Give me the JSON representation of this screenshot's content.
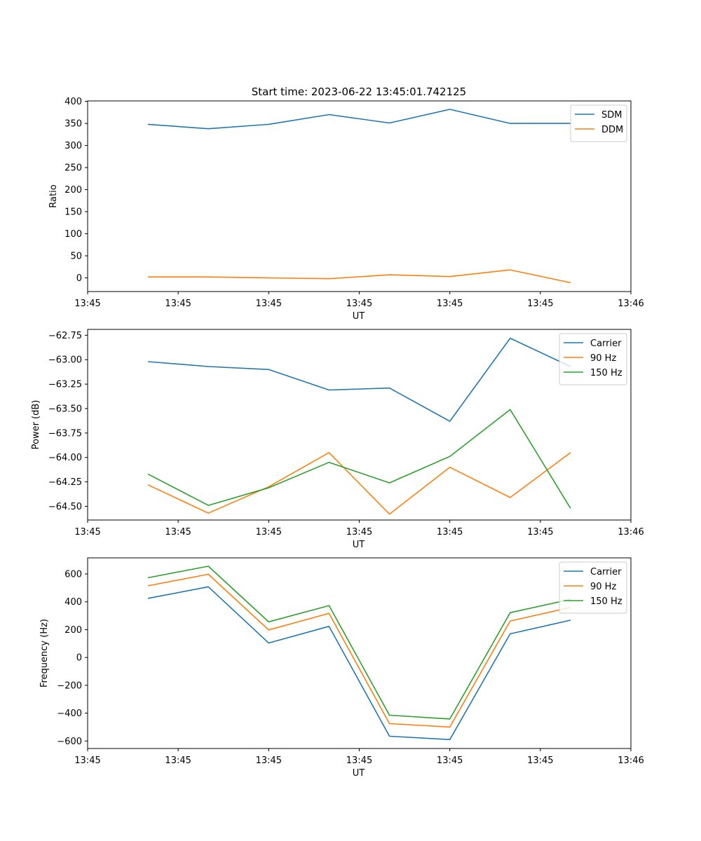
{
  "title": "Start time: 2023-06-22 13:45:01.742125",
  "chart_data": [
    {
      "type": "line",
      "x": [
        1,
        2,
        3,
        4,
        5,
        6,
        7,
        8
      ],
      "xlim": [
        0,
        9
      ],
      "xticks": [
        0,
        1.5,
        3,
        4.5,
        6,
        7.5,
        9
      ],
      "xtick_labels": [
        "13:45",
        "13:45",
        "13:45",
        "13:45",
        "13:45",
        "13:45",
        "13:46"
      ],
      "xlabel": "UT",
      "ylabel": "Ratio",
      "ylim": [
        -31,
        401
      ],
      "yticks": [
        0,
        50,
        100,
        150,
        200,
        250,
        300,
        350,
        400
      ],
      "ytick_labels": [
        "0",
        "50",
        "100",
        "150",
        "200",
        "250",
        "300",
        "350",
        "400"
      ],
      "legend_position": "top-right",
      "series": [
        {
          "name": "SDM",
          "color": "#1f77b4",
          "values": [
            348,
            338,
            348,
            370,
            351,
            382,
            350,
            350
          ]
        },
        {
          "name": "DDM",
          "color": "#ff7f0e",
          "values": [
            2,
            2,
            0,
            -2,
            7,
            3,
            18,
            -11
          ]
        }
      ]
    },
    {
      "type": "line",
      "x": [
        1,
        2,
        3,
        4,
        5,
        6,
        7,
        8
      ],
      "xlim": [
        0,
        9
      ],
      "xticks": [
        0,
        1.5,
        3,
        4.5,
        6,
        7.5,
        9
      ],
      "xtick_labels": [
        "13:45",
        "13:45",
        "13:45",
        "13:45",
        "13:45",
        "13:45",
        "13:46"
      ],
      "xlabel": "UT",
      "ylabel": "Power (dB)",
      "ylim": [
        -64.64,
        -62.69
      ],
      "yticks": [
        -64.5,
        -64.25,
        -64.0,
        -63.75,
        -63.5,
        -63.25,
        -63.0,
        -62.75
      ],
      "ytick_labels": [
        "−64.50",
        "−64.25",
        "−64.00",
        "−63.75",
        "−63.50",
        "−63.25",
        "−63.00",
        "−62.75"
      ],
      "legend_position": "top-right",
      "series": [
        {
          "name": "Carrier",
          "color": "#1f77b4",
          "values": [
            -63.02,
            -63.07,
            -63.1,
            -63.31,
            -63.29,
            -63.63,
            -62.78,
            -63.07
          ]
        },
        {
          "name": "90 Hz",
          "color": "#ff7f0e",
          "values": [
            -64.28,
            -64.57,
            -64.3,
            -63.95,
            -64.58,
            -64.1,
            -64.41,
            -63.95
          ]
        },
        {
          "name": "150 Hz",
          "color": "#2ca02c",
          "values": [
            -64.17,
            -64.49,
            -64.31,
            -64.05,
            -64.26,
            -63.99,
            -63.51,
            -64.52
          ]
        }
      ]
    },
    {
      "type": "line",
      "x": [
        1,
        2,
        3,
        4,
        5,
        6,
        7,
        8
      ],
      "xlim": [
        0,
        9
      ],
      "xticks": [
        0,
        1.5,
        3,
        4.5,
        6,
        7.5,
        9
      ],
      "xtick_labels": [
        "13:45",
        "13:45",
        "13:45",
        "13:45",
        "13:45",
        "13:45",
        "13:46"
      ],
      "xlabel": "UT",
      "ylabel": "Frequency (Hz)",
      "ylim": [
        -654,
        716
      ],
      "yticks": [
        -600,
        -400,
        -200,
        0,
        200,
        400,
        600
      ],
      "ytick_labels": [
        "−600",
        "−400",
        "−200",
        "0",
        "200",
        "400",
        "600"
      ],
      "legend_position": "top-right",
      "series": [
        {
          "name": "Carrier",
          "color": "#1f77b4",
          "values": [
            425,
            508,
            104,
            224,
            -566,
            -590,
            170,
            268
          ]
        },
        {
          "name": "90 Hz",
          "color": "#ff7f0e",
          "values": [
            515,
            598,
            198,
            317,
            -475,
            -500,
            262,
            360
          ]
        },
        {
          "name": "150 Hz",
          "color": "#2ca02c",
          "values": [
            573,
            656,
            256,
            373,
            -415,
            -442,
            322,
            418
          ]
        }
      ]
    }
  ]
}
